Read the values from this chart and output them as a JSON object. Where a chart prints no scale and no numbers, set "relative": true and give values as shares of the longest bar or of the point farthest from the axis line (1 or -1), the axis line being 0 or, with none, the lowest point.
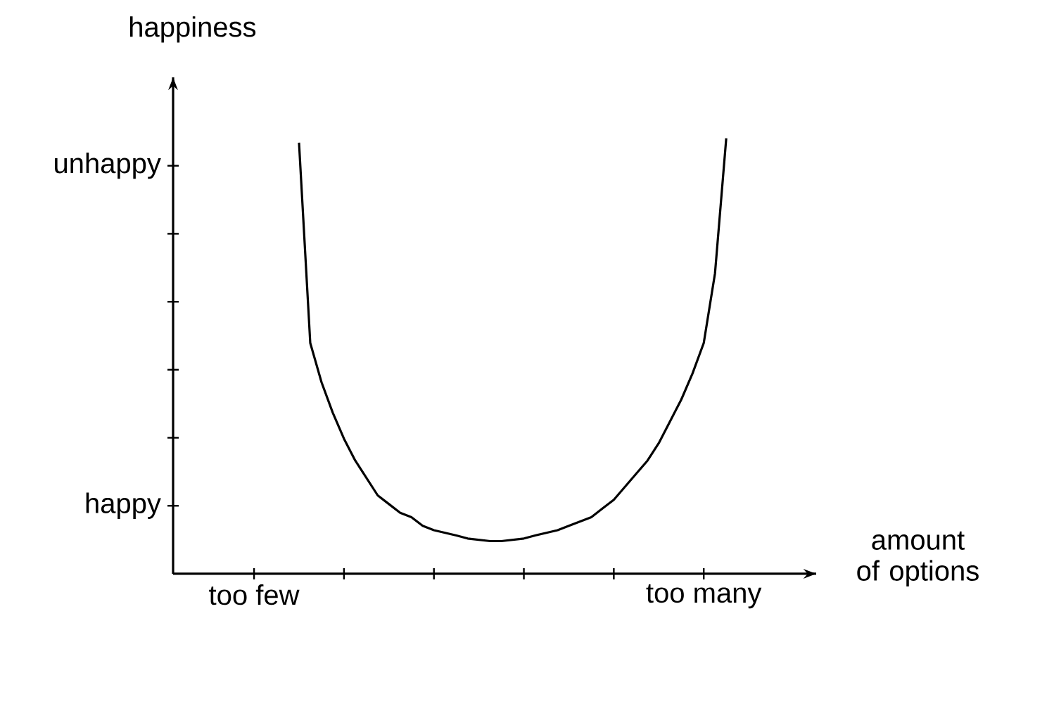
{
  "chart_data": {
    "type": "line",
    "xlabel": "amount of options",
    "ylabel": "happiness",
    "relative": true,
    "annotations": [
      "happy",
      "unhappy"
    ],
    "categories": [
      "too few",
      null,
      null,
      null,
      null,
      null,
      null,
      null,
      null,
      null,
      null,
      null,
      null,
      null,
      null,
      null,
      null,
      null,
      null,
      null,
      null,
      null,
      null,
      null,
      null,
      null,
      null,
      null,
      null,
      null,
      null,
      null,
      null,
      null,
      null,
      null,
      null,
      null,
      null,
      null,
      "too many",
      null,
      null
    ],
    "series": [
      {
        "color": "#000000",
        "values": [
          null,
          null,
          null,
          null,
          0.99,
          0.53,
          0.44,
          0.37,
          0.31,
          0.26,
          0.22,
          0.18,
          0.16,
          0.14,
          0.13,
          0.11,
          0.1,
          0.094,
          0.088,
          0.081,
          0.078,
          0.075,
          0.075,
          0.078,
          0.081,
          0.088,
          0.094,
          0.1,
          0.11,
          0.12,
          0.13,
          0.15,
          0.17,
          0.2,
          0.23,
          0.26,
          0.3,
          0.35,
          0.4,
          0.46,
          0.53,
          0.69,
          1.0
        ]
      }
    ],
    "marker": "none",
    "line_style": "solid"
  }
}
